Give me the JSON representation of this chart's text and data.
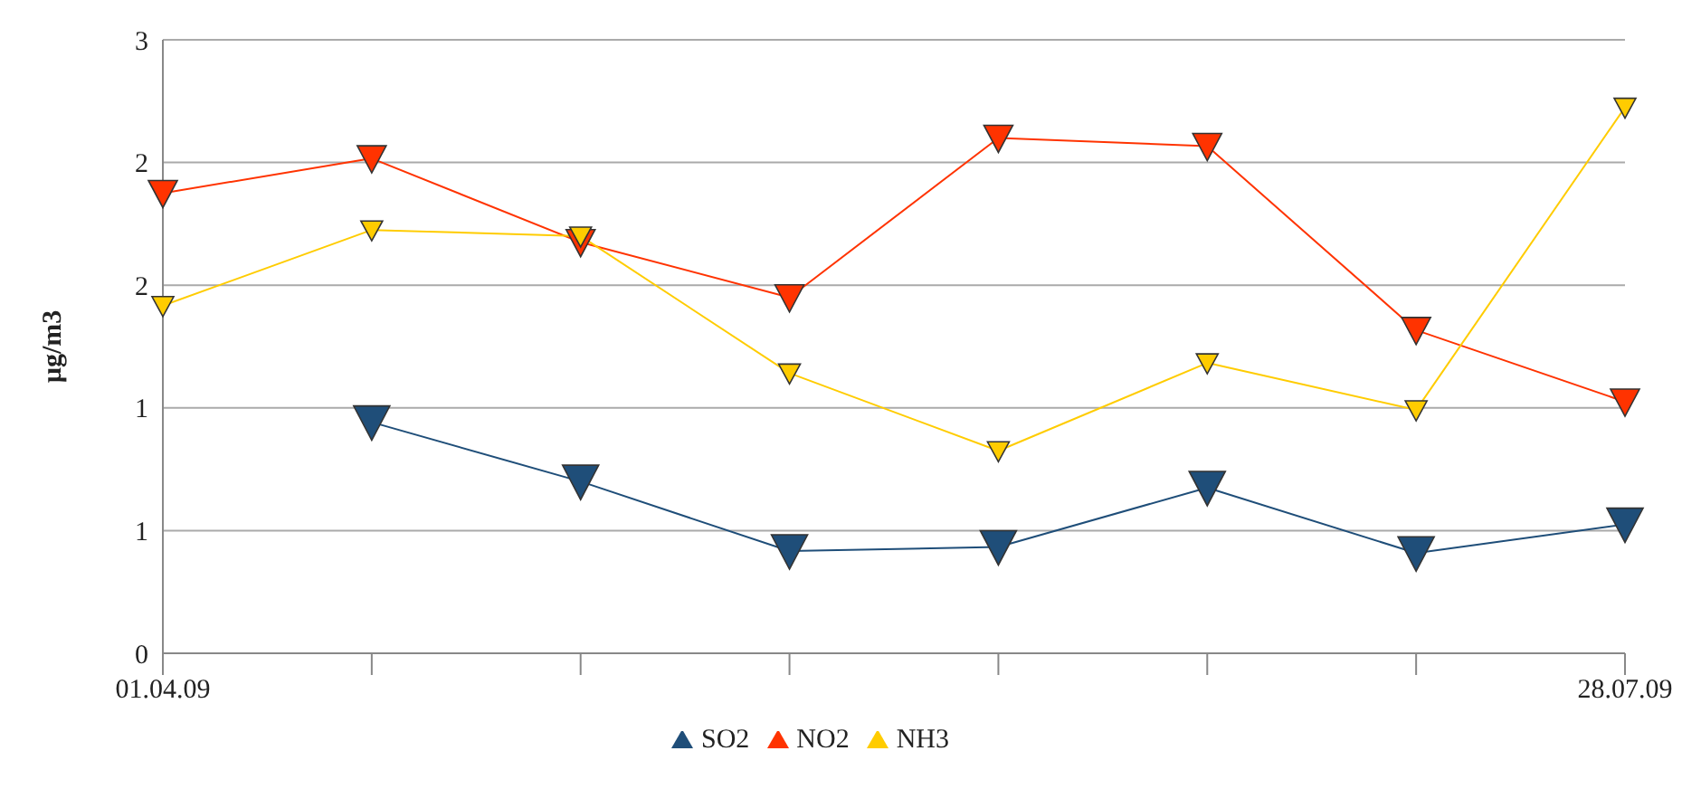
{
  "chart_data": {
    "type": "line",
    "ylabel": "µg/m3",
    "categories": [
      "01.04.09",
      null,
      null,
      null,
      null,
      null,
      null,
      "28.07.09"
    ],
    "series": [
      {
        "name": "SO2",
        "color": "#1f4e79",
        "values": [
          null,
          1.13,
          0.84,
          0.5,
          0.52,
          0.81,
          0.49,
          0.63
        ]
      },
      {
        "name": "NO2",
        "color": "#ff3300",
        "values": [
          2.25,
          2.42,
          2.01,
          1.74,
          2.52,
          2.48,
          1.58,
          1.23
        ]
      },
      {
        "name": "NH3",
        "color": "#ffcc00",
        "values": [
          1.7,
          2.07,
          2.04,
          1.37,
          0.99,
          1.42,
          1.19,
          2.67
        ]
      }
    ],
    "ylim": [
      0,
      3
    ],
    "yticks": [
      0,
      {
        "value": 0.6,
        "label": "1"
      },
      {
        "value": 1.2,
        "label": "1"
      },
      {
        "value": 1.8,
        "label": "2"
      },
      {
        "value": 2.4,
        "label": "2"
      },
      3
    ],
    "grid": "y",
    "legend": "bottom",
    "marker": "triangle",
    "line_style": "solid"
  }
}
